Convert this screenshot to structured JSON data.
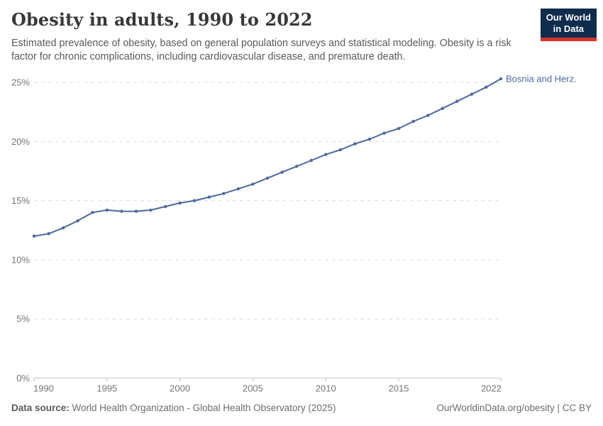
{
  "header": {
    "title": "Obesity in adults, 1990 to 2022",
    "subtitle": "Estimated prevalence of obesity, based on general population surveys and statistical modeling. Obesity is a risk factor for chronic complications, including cardiovascular disease, and premature death.",
    "logo": {
      "line1": "Our World",
      "line2": "in Data",
      "bg_color": "#0d2c4e",
      "accent_color": "#d7332b"
    }
  },
  "chart_data": {
    "type": "line",
    "title": "Obesity in adults, 1990 to 2022",
    "xlabel": "",
    "ylabel": "",
    "xlim": [
      1990,
      2022
    ],
    "ylim": [
      0,
      25
    ],
    "grid": "horizontal-dashed",
    "legend_position": "end-of-line-label",
    "x_ticks": [
      1990,
      1995,
      2000,
      2005,
      2010,
      2015,
      2022
    ],
    "y_ticks": [
      0,
      5,
      10,
      15,
      20,
      25
    ],
    "y_tick_suffix": "%",
    "series": [
      {
        "name": "Bosnia and Herz.",
        "color": "#4c6a9c",
        "x": [
          1990,
          1991,
          1992,
          1993,
          1994,
          1995,
          1996,
          1997,
          1998,
          1999,
          2000,
          2001,
          2002,
          2003,
          2004,
          2005,
          2006,
          2007,
          2008,
          2009,
          2010,
          2011,
          2012,
          2013,
          2014,
          2015,
          2016,
          2017,
          2018,
          2019,
          2020,
          2021,
          2022
        ],
        "values": [
          12.0,
          12.2,
          12.7,
          13.3,
          14.0,
          14.2,
          14.1,
          14.1,
          14.2,
          14.5,
          14.8,
          15.0,
          15.3,
          15.6,
          16.0,
          16.4,
          16.9,
          17.4,
          17.9,
          18.4,
          18.9,
          19.3,
          19.8,
          20.2,
          20.7,
          21.1,
          21.7,
          22.2,
          22.8,
          23.4,
          24.0,
          24.6,
          25.3
        ]
      }
    ]
  },
  "footer": {
    "source_label": "Data source:",
    "source_text": " World Health Organization - Global Health Observatory (2025)",
    "credit": "OurWorldinData.org/obesity | CC BY"
  }
}
